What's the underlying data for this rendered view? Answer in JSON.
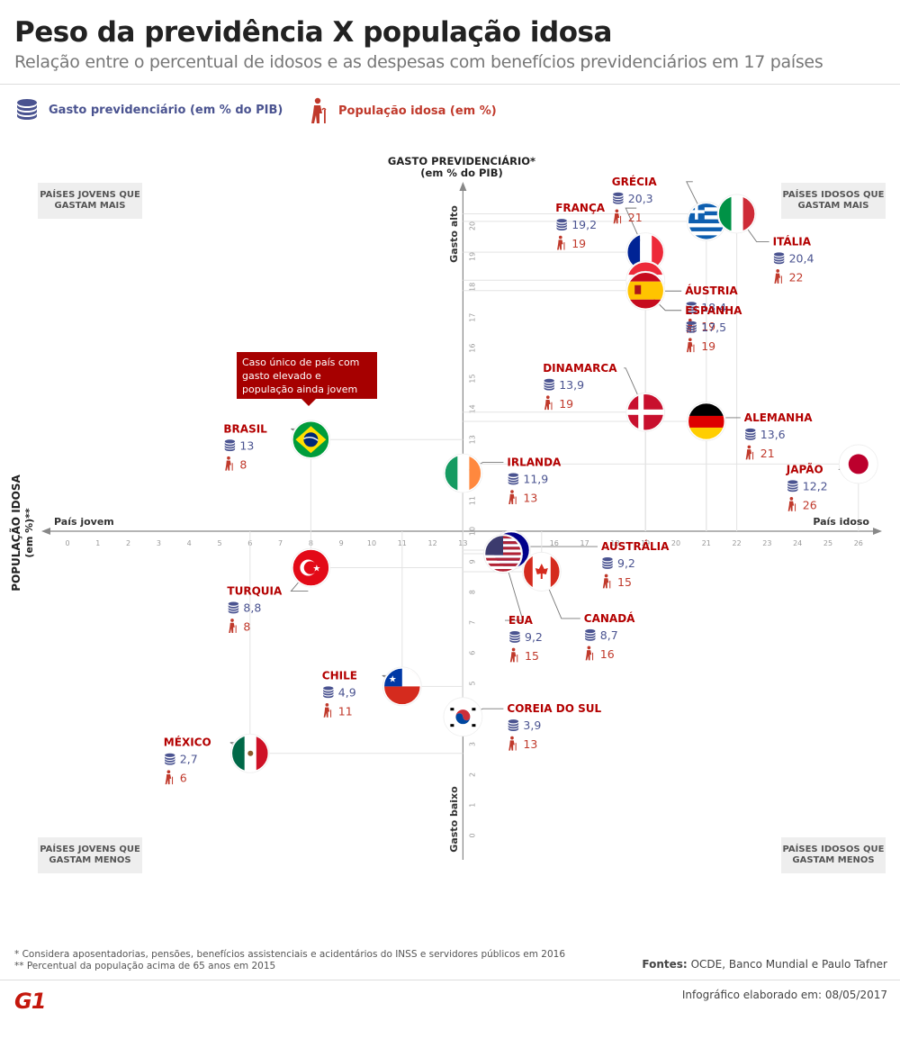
{
  "header": {
    "title": "Peso da previdência X população idosa",
    "subtitle": "Relação entre o percentual de idosos e as despesas com benefícios previdenciários em 17 países"
  },
  "legend": {
    "spend_label": "Gasto previdenciário (em % do PIB)",
    "spend_icon": "coins-stack-icon",
    "spend_color": "#4a5390",
    "elderly_label": "População idosa (em %)",
    "elderly_icon": "elderly-person-icon",
    "elderly_color": "#c0392b"
  },
  "quadrants": {
    "top_left": "PAÍSES JOVENS QUE GASTAM MAIS",
    "top_right": "PAÍSES IDOSOS QUE GASTAM MAIS",
    "bottom_left": "PAÍSES JOVENS QUE GASTAM MENOS",
    "bottom_right": "PAÍSES IDOSOS QUE GASTAM MENOS"
  },
  "callout": "Caso único de país com gasto elevado e população ainda jovem",
  "chart_data": {
    "type": "scatter",
    "y_axis_title": "GASTO PREVIDENCIÁRIO*",
    "y_axis_subtitle": "(em % do PIB)",
    "x_axis_title": "POPULAÇÃO IDOSA",
    "x_axis_subtitle": "(em %)**",
    "x_left_label": "País jovem",
    "x_right_label": "País idoso",
    "y_top_label": "Gasto alto",
    "y_bottom_label": "Gasto baixo",
    "x_ticks": [
      0,
      1,
      2,
      3,
      4,
      5,
      6,
      7,
      8,
      9,
      10,
      11,
      12,
      13,
      14,
      15,
      16,
      17,
      18,
      19,
      20,
      21,
      22,
      23,
      24,
      25,
      26
    ],
    "y_ticks_upper": [
      10,
      11,
      12,
      13,
      14,
      15,
      16,
      17,
      18,
      19,
      20
    ],
    "y_ticks_lower": [
      0,
      1,
      2,
      3,
      4,
      5,
      6,
      7,
      8,
      9
    ],
    "x_cross": 13,
    "y_cross": 10,
    "points": [
      {
        "country": "GRÉCIA",
        "elderly": 21,
        "spend": 20.3,
        "spend_label": "20,3",
        "elderly_label": "21",
        "flag": "greece-flag"
      },
      {
        "country": "ITÁLIA",
        "elderly": 22,
        "spend": 20.4,
        "spend_label": "20,4",
        "elderly_label": "22",
        "flag": "italy-flag"
      },
      {
        "country": "FRANÇA",
        "elderly": 19,
        "spend": 19.2,
        "spend_label": "19,2",
        "elderly_label": "19",
        "flag": "france-flag"
      },
      {
        "country": "ÁUSTRIA",
        "elderly": 19,
        "spend": 18.4,
        "spend_label": "18,4",
        "elderly_label": "19",
        "flag": "austria-flag"
      },
      {
        "country": "ESPANHA",
        "elderly": 19,
        "spend": 17.5,
        "spend_label": "17,5",
        "elderly_label": "19",
        "flag": "spain-flag"
      },
      {
        "country": "DINAMARCA",
        "elderly": 19,
        "spend": 13.9,
        "spend_label": "13,9",
        "elderly_label": "19",
        "flag": "denmark-flag"
      },
      {
        "country": "ALEMANHA",
        "elderly": 21,
        "spend": 13.6,
        "spend_label": "13,6",
        "elderly_label": "21",
        "flag": "germany-flag"
      },
      {
        "country": "BRASIL",
        "elderly": 8,
        "spend": 13,
        "spend_label": "13",
        "elderly_label": "8",
        "flag": "brazil-flag"
      },
      {
        "country": "IRLANDA",
        "elderly": 13,
        "spend": 11.9,
        "spend_label": "11,9",
        "elderly_label": "13",
        "flag": "ireland-flag"
      },
      {
        "country": "JAPÃO",
        "elderly": 26,
        "spend": 12.2,
        "spend_label": "12,2",
        "elderly_label": "26",
        "flag": "japan-flag"
      },
      {
        "country": "AUSTRÁLIA",
        "elderly": 15,
        "spend": 9.2,
        "spend_label": "9,2",
        "elderly_label": "15",
        "flag": "australia-flag"
      },
      {
        "country": "EUA",
        "elderly": 15,
        "spend": 9.2,
        "spend_label": "9,2",
        "elderly_label": "15",
        "flag": "usa-flag"
      },
      {
        "country": "CANADÁ",
        "elderly": 16,
        "spend": 8.7,
        "spend_label": "8,7",
        "elderly_label": "16",
        "flag": "canada-flag"
      },
      {
        "country": "TURQUIA",
        "elderly": 8,
        "spend": 8.8,
        "spend_label": "8,8",
        "elderly_label": "8",
        "flag": "turkey-flag"
      },
      {
        "country": "CHILE",
        "elderly": 11,
        "spend": 4.9,
        "spend_label": "4,9",
        "elderly_label": "11",
        "flag": "chile-flag"
      },
      {
        "country": "COREIA DO SUL",
        "elderly": 13,
        "spend": 3.9,
        "spend_label": "3,9",
        "elderly_label": "13",
        "flag": "south-korea-flag"
      },
      {
        "country": "MÉXICO",
        "elderly": 6,
        "spend": 2.7,
        "spend_label": "2,7",
        "elderly_label": "6",
        "flag": "mexico-flag"
      }
    ]
  },
  "footnotes": {
    "note1": "* Considera aposentadorias, pensões, benefícios assistenciais e acidentários do INSS e servidores públicos em 2016",
    "note2": "** Percentual da população acima de 65 anos em 2015"
  },
  "sources_label": "Fontes:",
  "sources": "OCDE, Banco Mundial e Paulo Tafner",
  "credit": "Infográfico elaborado em: 08/05/2017",
  "logo": "G1"
}
